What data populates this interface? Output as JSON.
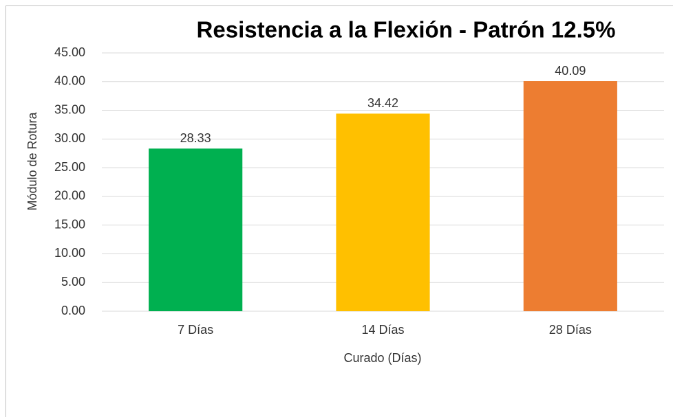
{
  "chart_data": {
    "type": "bar",
    "title": "Resistencia a la Flexión - Patrón 12.5%",
    "x_label": "Curado (Días)",
    "y_label": "Módulo de Rotura",
    "categories": [
      "7 Días",
      "14 Días",
      "28 Días"
    ],
    "values": [
      28.33,
      34.42,
      40.09
    ],
    "colors": [
      "#00b050",
      "#ffc000",
      "#ed7d31"
    ],
    "ylim": [
      0,
      45
    ],
    "yticks": [
      {
        "value": 0,
        "label": "0.00"
      },
      {
        "value": 5,
        "label": "5.00"
      },
      {
        "value": 10,
        "label": "10.00"
      },
      {
        "value": 15,
        "label": "15.00"
      },
      {
        "value": 20,
        "label": "20.00"
      },
      {
        "value": 25,
        "label": "25.00"
      },
      {
        "value": 30,
        "label": "30.00"
      },
      {
        "value": 35,
        "label": "35.00"
      },
      {
        "value": 40,
        "label": "40.00"
      },
      {
        "value": 45,
        "label": "45.00"
      }
    ],
    "grid": true
  }
}
